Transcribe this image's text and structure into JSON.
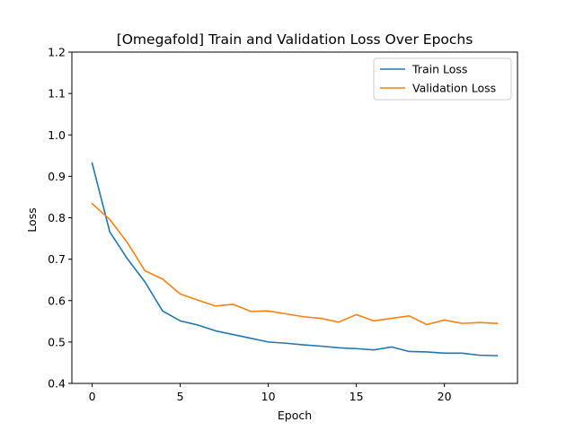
{
  "chart_data": {
    "type": "line",
    "title": "[Omegafold] Train and Validation Loss Over Epochs",
    "xlabel": "Epoch",
    "ylabel": "Loss",
    "xlim": [
      -1.15,
      24.15
    ],
    "ylim": [
      0.4,
      1.2
    ],
    "xticks": [
      0,
      5,
      10,
      15,
      20
    ],
    "yticks": [
      0.4,
      0.5,
      0.6,
      0.7,
      0.8,
      0.9,
      1.0,
      1.1,
      1.2
    ],
    "grid": false,
    "legend_position": "top-right",
    "x": [
      0,
      1,
      2,
      3,
      4,
      5,
      6,
      7,
      8,
      9,
      10,
      11,
      12,
      13,
      14,
      15,
      16,
      17,
      18,
      19,
      20,
      21,
      22,
      23
    ],
    "series": [
      {
        "name": "Train Loss",
        "color": "#1f77b4",
        "values": [
          0.932,
          0.766,
          0.701,
          0.645,
          0.575,
          0.551,
          0.541,
          0.527,
          0.518,
          0.509,
          0.5,
          0.497,
          0.493,
          0.49,
          0.486,
          0.484,
          0.481,
          0.488,
          0.477,
          0.476,
          0.473,
          0.473,
          0.468,
          0.467
        ]
      },
      {
        "name": "Validation Loss",
        "color": "#ff7f0e",
        "values": [
          0.834,
          0.796,
          0.74,
          0.672,
          0.652,
          0.616,
          0.601,
          0.587,
          0.591,
          0.574,
          0.575,
          0.568,
          0.561,
          0.557,
          0.548,
          0.566,
          0.551,
          0.557,
          0.563,
          0.542,
          0.553,
          0.545,
          0.547,
          0.545
        ]
      }
    ]
  }
}
